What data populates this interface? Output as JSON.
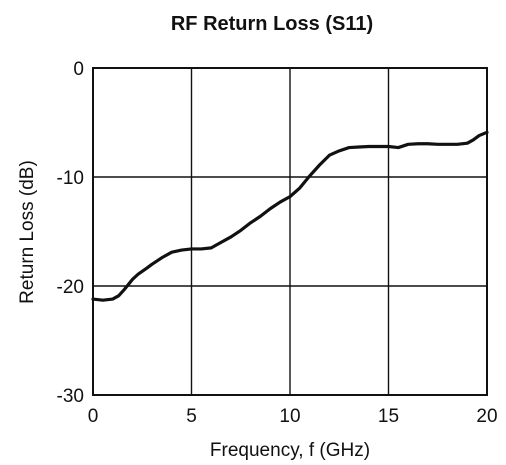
{
  "chart_data": {
    "type": "line",
    "title": "RF Return Loss (S11)",
    "xlabel": "Frequency, f (GHz)",
    "ylabel": "Return Loss (dB)",
    "xlim": [
      0,
      20
    ],
    "ylim": [
      -30,
      0
    ],
    "x_ticks": [
      0,
      5,
      10,
      15,
      20
    ],
    "y_ticks": [
      0,
      -10,
      -20,
      -30
    ],
    "grid": true,
    "legend": "none",
    "line_color": "#111111",
    "series": [
      {
        "x": [
          0,
          0.5,
          1.0,
          1.3,
          1.6,
          2.0,
          2.3,
          2.7,
          3.0,
          3.5,
          4.0,
          4.5,
          5.0,
          5.5,
          6.0,
          6.5,
          7.0,
          7.5,
          8.0,
          8.5,
          9.0,
          9.5,
          10.0,
          10.5,
          11.0,
          11.5,
          12.0,
          12.5,
          13.0,
          13.5,
          14.0,
          14.5,
          15.0,
          15.5,
          16.0,
          16.5,
          17.0,
          17.5,
          18.0,
          18.5,
          19.0,
          19.3,
          19.6,
          20.0
        ],
        "values": [
          -21.2,
          -21.3,
          -21.2,
          -20.9,
          -20.3,
          -19.4,
          -18.9,
          -18.4,
          -18.0,
          -17.4,
          -16.9,
          -16.7,
          -16.6,
          -16.6,
          -16.5,
          -16.0,
          -15.5,
          -14.9,
          -14.2,
          -13.6,
          -12.9,
          -12.3,
          -11.8,
          -11.0,
          -9.9,
          -8.9,
          -8.0,
          -7.6,
          -7.3,
          -7.25,
          -7.2,
          -7.2,
          -7.2,
          -7.3,
          -7.0,
          -6.95,
          -6.95,
          -7.0,
          -7.0,
          -7.0,
          -6.9,
          -6.6,
          -6.2,
          -5.9
        ]
      }
    ]
  }
}
